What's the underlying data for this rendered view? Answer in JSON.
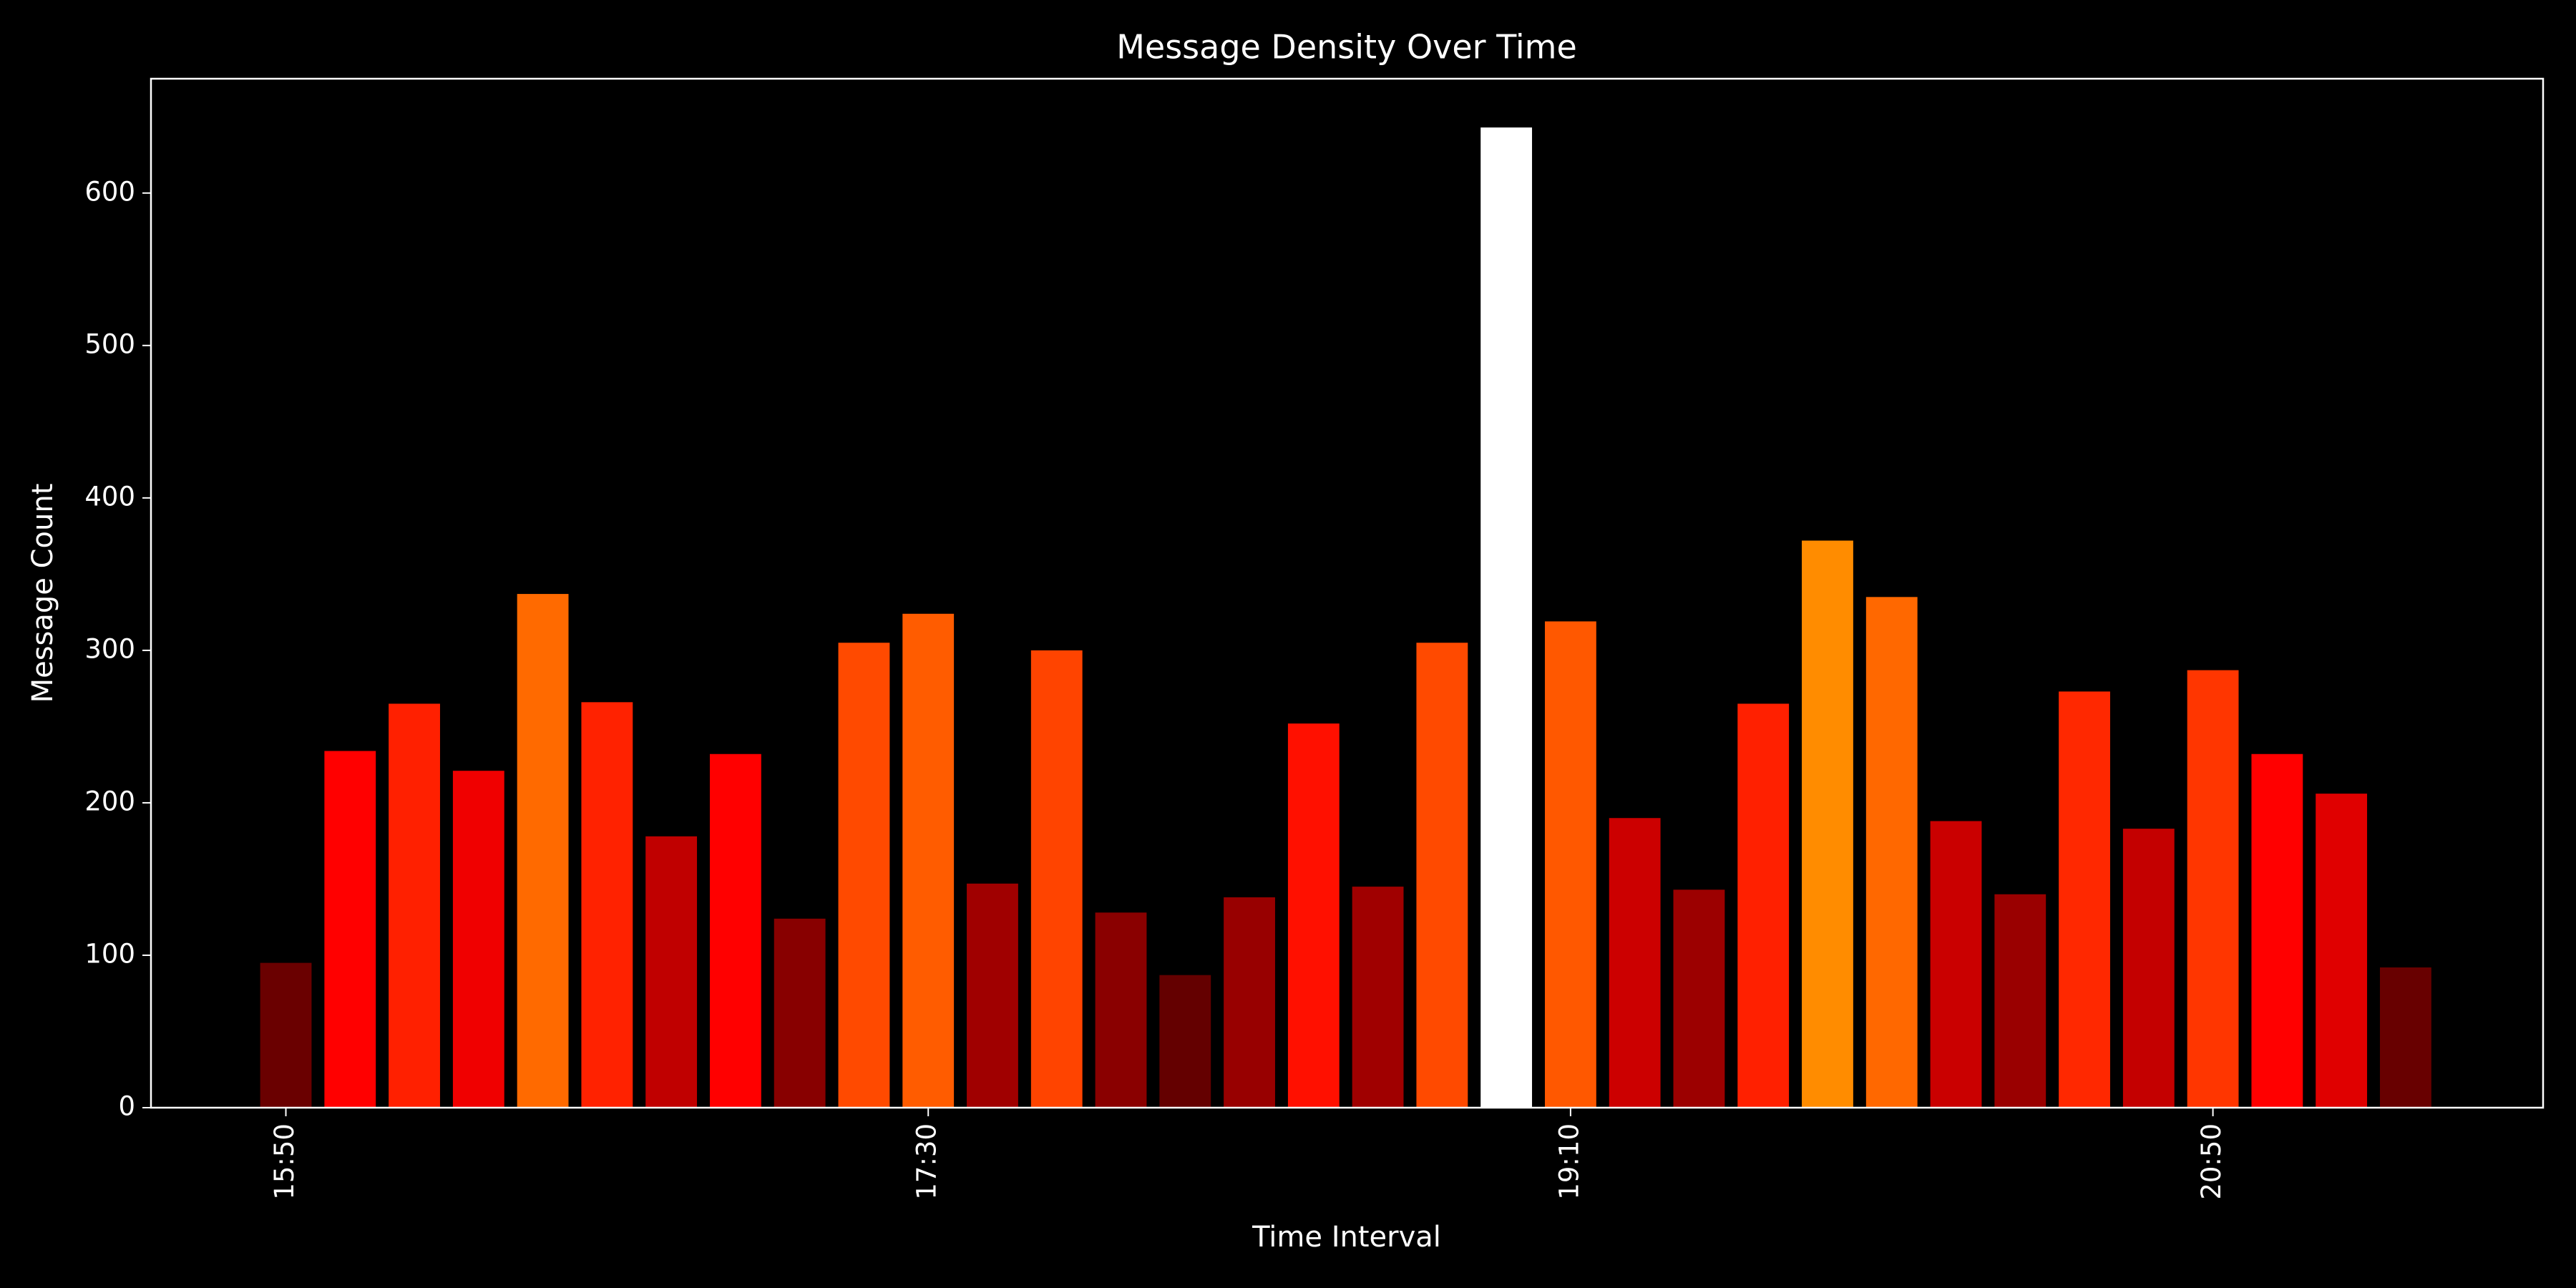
{
  "chart_data": {
    "type": "bar",
    "title": "Message Density Over Time",
    "x_label": "Time Interval",
    "y_label": "Message Count",
    "categories": [
      "15:50",
      null,
      null,
      null,
      null,
      null,
      null,
      null,
      null,
      null,
      "17:30",
      null,
      null,
      null,
      null,
      null,
      null,
      null,
      null,
      null,
      "19:10",
      null,
      null,
      null,
      null,
      null,
      null,
      null,
      null,
      null,
      "20:50",
      null,
      null,
      null
    ],
    "values": [
      95,
      234,
      265,
      221,
      337,
      266,
      178,
      232,
      124,
      305,
      324,
      147,
      300,
      128,
      87,
      138,
      252,
      145,
      305,
      643,
      319,
      190,
      143,
      265,
      372,
      335,
      188,
      140,
      273,
      183,
      287,
      232,
      206,
      92
    ],
    "colors": [
      "#6a0000",
      "#ff0000",
      "#ff2000",
      "#f00000",
      "#ff6a00",
      "#ff2200",
      "#c00000",
      "#ff0000",
      "#880000",
      "#ff4a00",
      "#ff5c00",
      "#a00000",
      "#ff4400",
      "#8a0000",
      "#640000",
      "#980000",
      "#ff1000",
      "#a00000",
      "#ff4a00",
      "#ffffff",
      "#ff5800",
      "#cc0000",
      "#9c0000",
      "#ff2000",
      "#ff8c00",
      "#ff6800",
      "#ca0000",
      "#9a0000",
      "#ff2800",
      "#c40000",
      "#ff3600",
      "#ff0000",
      "#e00000",
      "#680000"
    ],
    "ylim": [
      0,
      675
    ],
    "yticks": [
      0,
      100,
      200,
      300,
      400,
      500,
      600
    ],
    "grid": false
  }
}
